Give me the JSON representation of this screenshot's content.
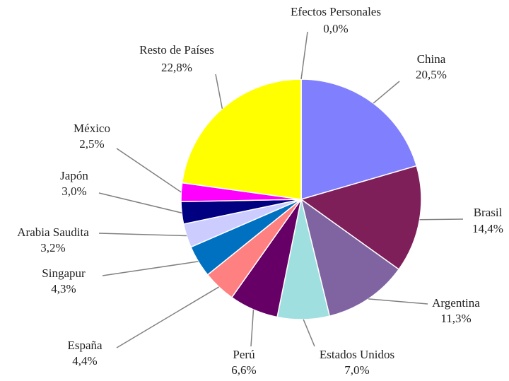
{
  "chart_data": {
    "type": "pie",
    "categories": [
      "China",
      "Brasil",
      "Argentina",
      "Estados Unidos",
      "Perú",
      "España",
      "Singapur",
      "Arabia Saudita",
      "Japón",
      "México",
      "Resto de Países",
      "Efectos Personales"
    ],
    "values": [
      20.5,
      14.4,
      11.3,
      7.0,
      6.6,
      4.4,
      4.3,
      3.2,
      3.0,
      2.5,
      22.8,
      0.0
    ],
    "value_labels": [
      "20,5%",
      "14,4%",
      "11,3%",
      "7,0%",
      "6,6%",
      "4,4%",
      "4,3%",
      "3,2%",
      "3,0%",
      "2,5%",
      "22,8%",
      "0,0%"
    ],
    "colors": [
      "#8080ff",
      "#7f1f5a",
      "#8064a2",
      "#a0dfe0",
      "#660066",
      "#ff8080",
      "#0070c0",
      "#ccccff",
      "#000080",
      "#ff00ff",
      "#ffff00",
      "#00ccff"
    ]
  }
}
